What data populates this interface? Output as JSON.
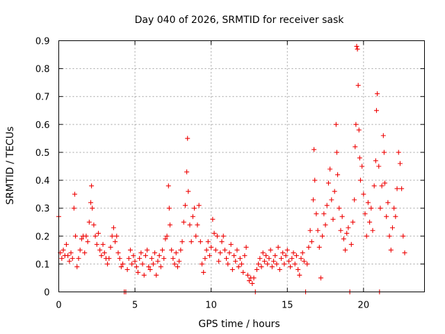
{
  "chart_data": {
    "type": "scatter",
    "title": "Day 040 of 2026, SRMTID for receiver sask",
    "xlabel": "GPS time / hours",
    "ylabel": "SRMTID / TECUs",
    "xlim": [
      0,
      24
    ],
    "ylim": [
      0,
      0.9
    ],
    "xticks": [
      0,
      5,
      10,
      15,
      20
    ],
    "xtick_labels": [
      "0",
      "5",
      "10",
      "15",
      "20"
    ],
    "yticks": [
      0,
      0.1,
      0.2,
      0.3,
      0.4,
      0.5,
      0.6,
      0.7,
      0.8,
      0.9
    ],
    "ytick_labels": [
      "0",
      "0.1",
      "0.2",
      "0.3",
      "0.4",
      "0.5",
      "0.6",
      "0.7",
      "0.8",
      "0.9"
    ],
    "grid": true,
    "marker": "plus",
    "color": "#ee0000",
    "series": [
      {
        "name": "SRMTID",
        "points": [
          [
            0.0,
            0.27
          ],
          [
            0.1,
            0.14
          ],
          [
            0.2,
            0.12
          ],
          [
            0.3,
            0.15
          ],
          [
            0.4,
            0.13
          ],
          [
            0.5,
            0.17
          ],
          [
            0.6,
            0.13
          ],
          [
            0.7,
            0.11
          ],
          [
            0.8,
            0.14
          ],
          [
            0.9,
            0.12
          ],
          [
            1.0,
            0.3
          ],
          [
            1.05,
            0.35
          ],
          [
            1.1,
            0.2
          ],
          [
            1.2,
            0.09
          ],
          [
            1.3,
            0.12
          ],
          [
            1.4,
            0.15
          ],
          [
            1.5,
            0.19
          ],
          [
            1.6,
            0.2
          ],
          [
            1.7,
            0.14
          ],
          [
            1.8,
            0.2
          ],
          [
            1.9,
            0.18
          ],
          [
            2.0,
            0.25
          ],
          [
            2.1,
            0.32
          ],
          [
            2.15,
            0.38
          ],
          [
            2.2,
            0.3
          ],
          [
            2.3,
            0.24
          ],
          [
            2.4,
            0.2
          ],
          [
            2.5,
            0.17
          ],
          [
            2.6,
            0.21
          ],
          [
            2.7,
            0.15
          ],
          [
            2.8,
            0.13
          ],
          [
            2.9,
            0.17
          ],
          [
            3.0,
            0.14
          ],
          [
            3.1,
            0.12
          ],
          [
            3.2,
            0.1
          ],
          [
            3.3,
            0.12
          ],
          [
            3.4,
            0.16
          ],
          [
            3.5,
            0.2
          ],
          [
            3.6,
            0.23
          ],
          [
            3.7,
            0.18
          ],
          [
            3.8,
            0.2
          ],
          [
            3.9,
            0.14
          ],
          [
            4.0,
            0.12
          ],
          [
            4.1,
            0.09
          ],
          [
            4.2,
            0.1
          ],
          [
            4.3,
            0.0
          ],
          [
            4.4,
            0.0
          ],
          [
            4.5,
            0.08
          ],
          [
            4.6,
            0.12
          ],
          [
            4.7,
            0.15
          ],
          [
            4.8,
            0.1
          ],
          [
            4.9,
            0.13
          ],
          [
            5.0,
            0.11
          ],
          [
            5.1,
            0.09
          ],
          [
            5.2,
            0.07
          ],
          [
            5.3,
            0.12
          ],
          [
            5.4,
            0.14
          ],
          [
            5.5,
            0.1
          ],
          [
            5.6,
            0.06
          ],
          [
            5.7,
            0.13
          ],
          [
            5.8,
            0.15
          ],
          [
            5.9,
            0.09
          ],
          [
            6.0,
            0.08
          ],
          [
            6.1,
            0.12
          ],
          [
            6.2,
            0.1
          ],
          [
            6.3,
            0.14
          ],
          [
            6.4,
            0.06
          ],
          [
            6.5,
            0.11
          ],
          [
            6.6,
            0.13
          ],
          [
            6.7,
            0.09
          ],
          [
            6.8,
            0.15
          ],
          [
            6.9,
            0.12
          ],
          [
            7.0,
            0.19
          ],
          [
            7.1,
            0.2
          ],
          [
            7.2,
            0.38
          ],
          [
            7.25,
            0.3
          ],
          [
            7.3,
            0.24
          ],
          [
            7.4,
            0.15
          ],
          [
            7.5,
            0.12
          ],
          [
            7.6,
            0.1
          ],
          [
            7.7,
            0.14
          ],
          [
            7.8,
            0.09
          ],
          [
            7.9,
            0.11
          ],
          [
            8.0,
            0.15
          ],
          [
            8.1,
            0.18
          ],
          [
            8.2,
            0.25
          ],
          [
            8.3,
            0.31
          ],
          [
            8.4,
            0.43
          ],
          [
            8.45,
            0.55
          ],
          [
            8.5,
            0.36
          ],
          [
            8.6,
            0.24
          ],
          [
            8.7,
            0.18
          ],
          [
            8.8,
            0.27
          ],
          [
            8.9,
            0.3
          ],
          [
            9.0,
            0.2
          ],
          [
            9.1,
            0.24
          ],
          [
            9.2,
            0.31
          ],
          [
            9.3,
            0.18
          ],
          [
            9.4,
            0.1
          ],
          [
            9.5,
            0.07
          ],
          [
            9.6,
            0.12
          ],
          [
            9.7,
            0.15
          ],
          [
            9.8,
            0.18
          ],
          [
            9.9,
            0.13
          ],
          [
            10.0,
            0.16
          ],
          [
            10.1,
            0.26
          ],
          [
            10.2,
            0.21
          ],
          [
            10.3,
            0.15
          ],
          [
            10.4,
            0.2
          ],
          [
            10.5,
            0.11
          ],
          [
            10.6,
            0.14
          ],
          [
            10.7,
            0.18
          ],
          [
            10.8,
            0.2
          ],
          [
            10.9,
            0.15
          ],
          [
            11.0,
            0.12
          ],
          [
            11.1,
            0.1
          ],
          [
            11.2,
            0.14
          ],
          [
            11.3,
            0.17
          ],
          [
            11.4,
            0.08
          ],
          [
            11.5,
            0.13
          ],
          [
            11.6,
            0.11
          ],
          [
            11.7,
            0.15
          ],
          [
            11.8,
            0.09
          ],
          [
            11.9,
            0.12
          ],
          [
            12.0,
            0.1
          ],
          [
            12.1,
            0.07
          ],
          [
            12.2,
            0.13
          ],
          [
            12.3,
            0.16
          ],
          [
            12.4,
            0.06
          ],
          [
            12.5,
            0.04
          ],
          [
            12.6,
            0.05
          ],
          [
            12.7,
            0.03
          ],
          [
            12.8,
            0.05
          ],
          [
            12.9,
            0.0
          ],
          [
            13.0,
            0.08
          ],
          [
            13.1,
            0.1
          ],
          [
            13.2,
            0.12
          ],
          [
            13.3,
            0.09
          ],
          [
            13.4,
            0.14
          ],
          [
            13.5,
            0.11
          ],
          [
            13.6,
            0.13
          ],
          [
            13.7,
            0.1
          ],
          [
            13.8,
            0.12
          ],
          [
            13.9,
            0.15
          ],
          [
            14.0,
            0.09
          ],
          [
            14.1,
            0.11
          ],
          [
            14.2,
            0.13
          ],
          [
            14.3,
            0.1
          ],
          [
            14.4,
            0.16
          ],
          [
            14.5,
            0.08
          ],
          [
            14.6,
            0.12
          ],
          [
            14.7,
            0.14
          ],
          [
            14.8,
            0.1
          ],
          [
            14.9,
            0.13
          ],
          [
            15.0,
            0.15
          ],
          [
            15.1,
            0.11
          ],
          [
            15.2,
            0.09
          ],
          [
            15.3,
            0.12
          ],
          [
            15.4,
            0.14
          ],
          [
            15.5,
            0.1
          ],
          [
            15.6,
            0.13
          ],
          [
            15.7,
            0.08
          ],
          [
            15.8,
            0.06
          ],
          [
            15.9,
            0.12
          ],
          [
            16.0,
            0.14
          ],
          [
            16.1,
            0.11
          ],
          [
            16.2,
            0.0
          ],
          [
            16.3,
            0.1
          ],
          [
            16.4,
            0.16
          ],
          [
            16.5,
            0.22
          ],
          [
            16.6,
            0.18
          ],
          [
            16.7,
            0.33
          ],
          [
            16.75,
            0.51
          ],
          [
            16.8,
            0.4
          ],
          [
            16.9,
            0.28
          ],
          [
            17.0,
            0.22
          ],
          [
            17.1,
            0.16
          ],
          [
            17.2,
            0.05
          ],
          [
            17.3,
            0.2
          ],
          [
            17.4,
            0.28
          ],
          [
            17.5,
            0.24
          ],
          [
            17.6,
            0.31
          ],
          [
            17.7,
            0.39
          ],
          [
            17.8,
            0.44
          ],
          [
            17.9,
            0.33
          ],
          [
            18.0,
            0.26
          ],
          [
            18.1,
            0.36
          ],
          [
            18.2,
            0.6
          ],
          [
            18.25,
            0.5
          ],
          [
            18.3,
            0.42
          ],
          [
            18.4,
            0.3
          ],
          [
            18.5,
            0.22
          ],
          [
            18.6,
            0.27
          ],
          [
            18.7,
            0.19
          ],
          [
            18.8,
            0.15
          ],
          [
            18.9,
            0.21
          ],
          [
            19.0,
            0.23
          ],
          [
            19.1,
            0.0
          ],
          [
            19.2,
            0.17
          ],
          [
            19.3,
            0.25
          ],
          [
            19.4,
            0.33
          ],
          [
            19.45,
            0.52
          ],
          [
            19.5,
            0.6
          ],
          [
            19.55,
            0.88
          ],
          [
            19.6,
            0.87
          ],
          [
            19.65,
            0.74
          ],
          [
            19.7,
            0.58
          ],
          [
            19.75,
            0.48
          ],
          [
            19.8,
            0.4
          ],
          [
            19.9,
            0.45
          ],
          [
            20.0,
            0.35
          ],
          [
            20.1,
            0.28
          ],
          [
            20.2,
            0.2
          ],
          [
            20.3,
            0.32
          ],
          [
            20.4,
            0.25
          ],
          [
            20.5,
            0.3
          ],
          [
            20.6,
            0.22
          ],
          [
            20.7,
            0.38
          ],
          [
            20.8,
            0.47
          ],
          [
            20.85,
            0.65
          ],
          [
            20.9,
            0.71
          ],
          [
            21.0,
            0.45
          ],
          [
            21.05,
            0.0
          ],
          [
            21.1,
            0.3
          ],
          [
            21.2,
            0.38
          ],
          [
            21.3,
            0.56
          ],
          [
            21.35,
            0.5
          ],
          [
            21.4,
            0.39
          ],
          [
            21.5,
            0.27
          ],
          [
            21.6,
            0.32
          ],
          [
            21.7,
            0.2
          ],
          [
            21.8,
            0.15
          ],
          [
            21.9,
            0.23
          ],
          [
            22.0,
            0.3
          ],
          [
            22.1,
            0.27
          ],
          [
            22.2,
            0.37
          ],
          [
            22.3,
            0.5
          ],
          [
            22.4,
            0.46
          ],
          [
            22.5,
            0.37
          ],
          [
            22.6,
            0.2
          ],
          [
            22.7,
            0.14
          ]
        ]
      }
    ]
  }
}
